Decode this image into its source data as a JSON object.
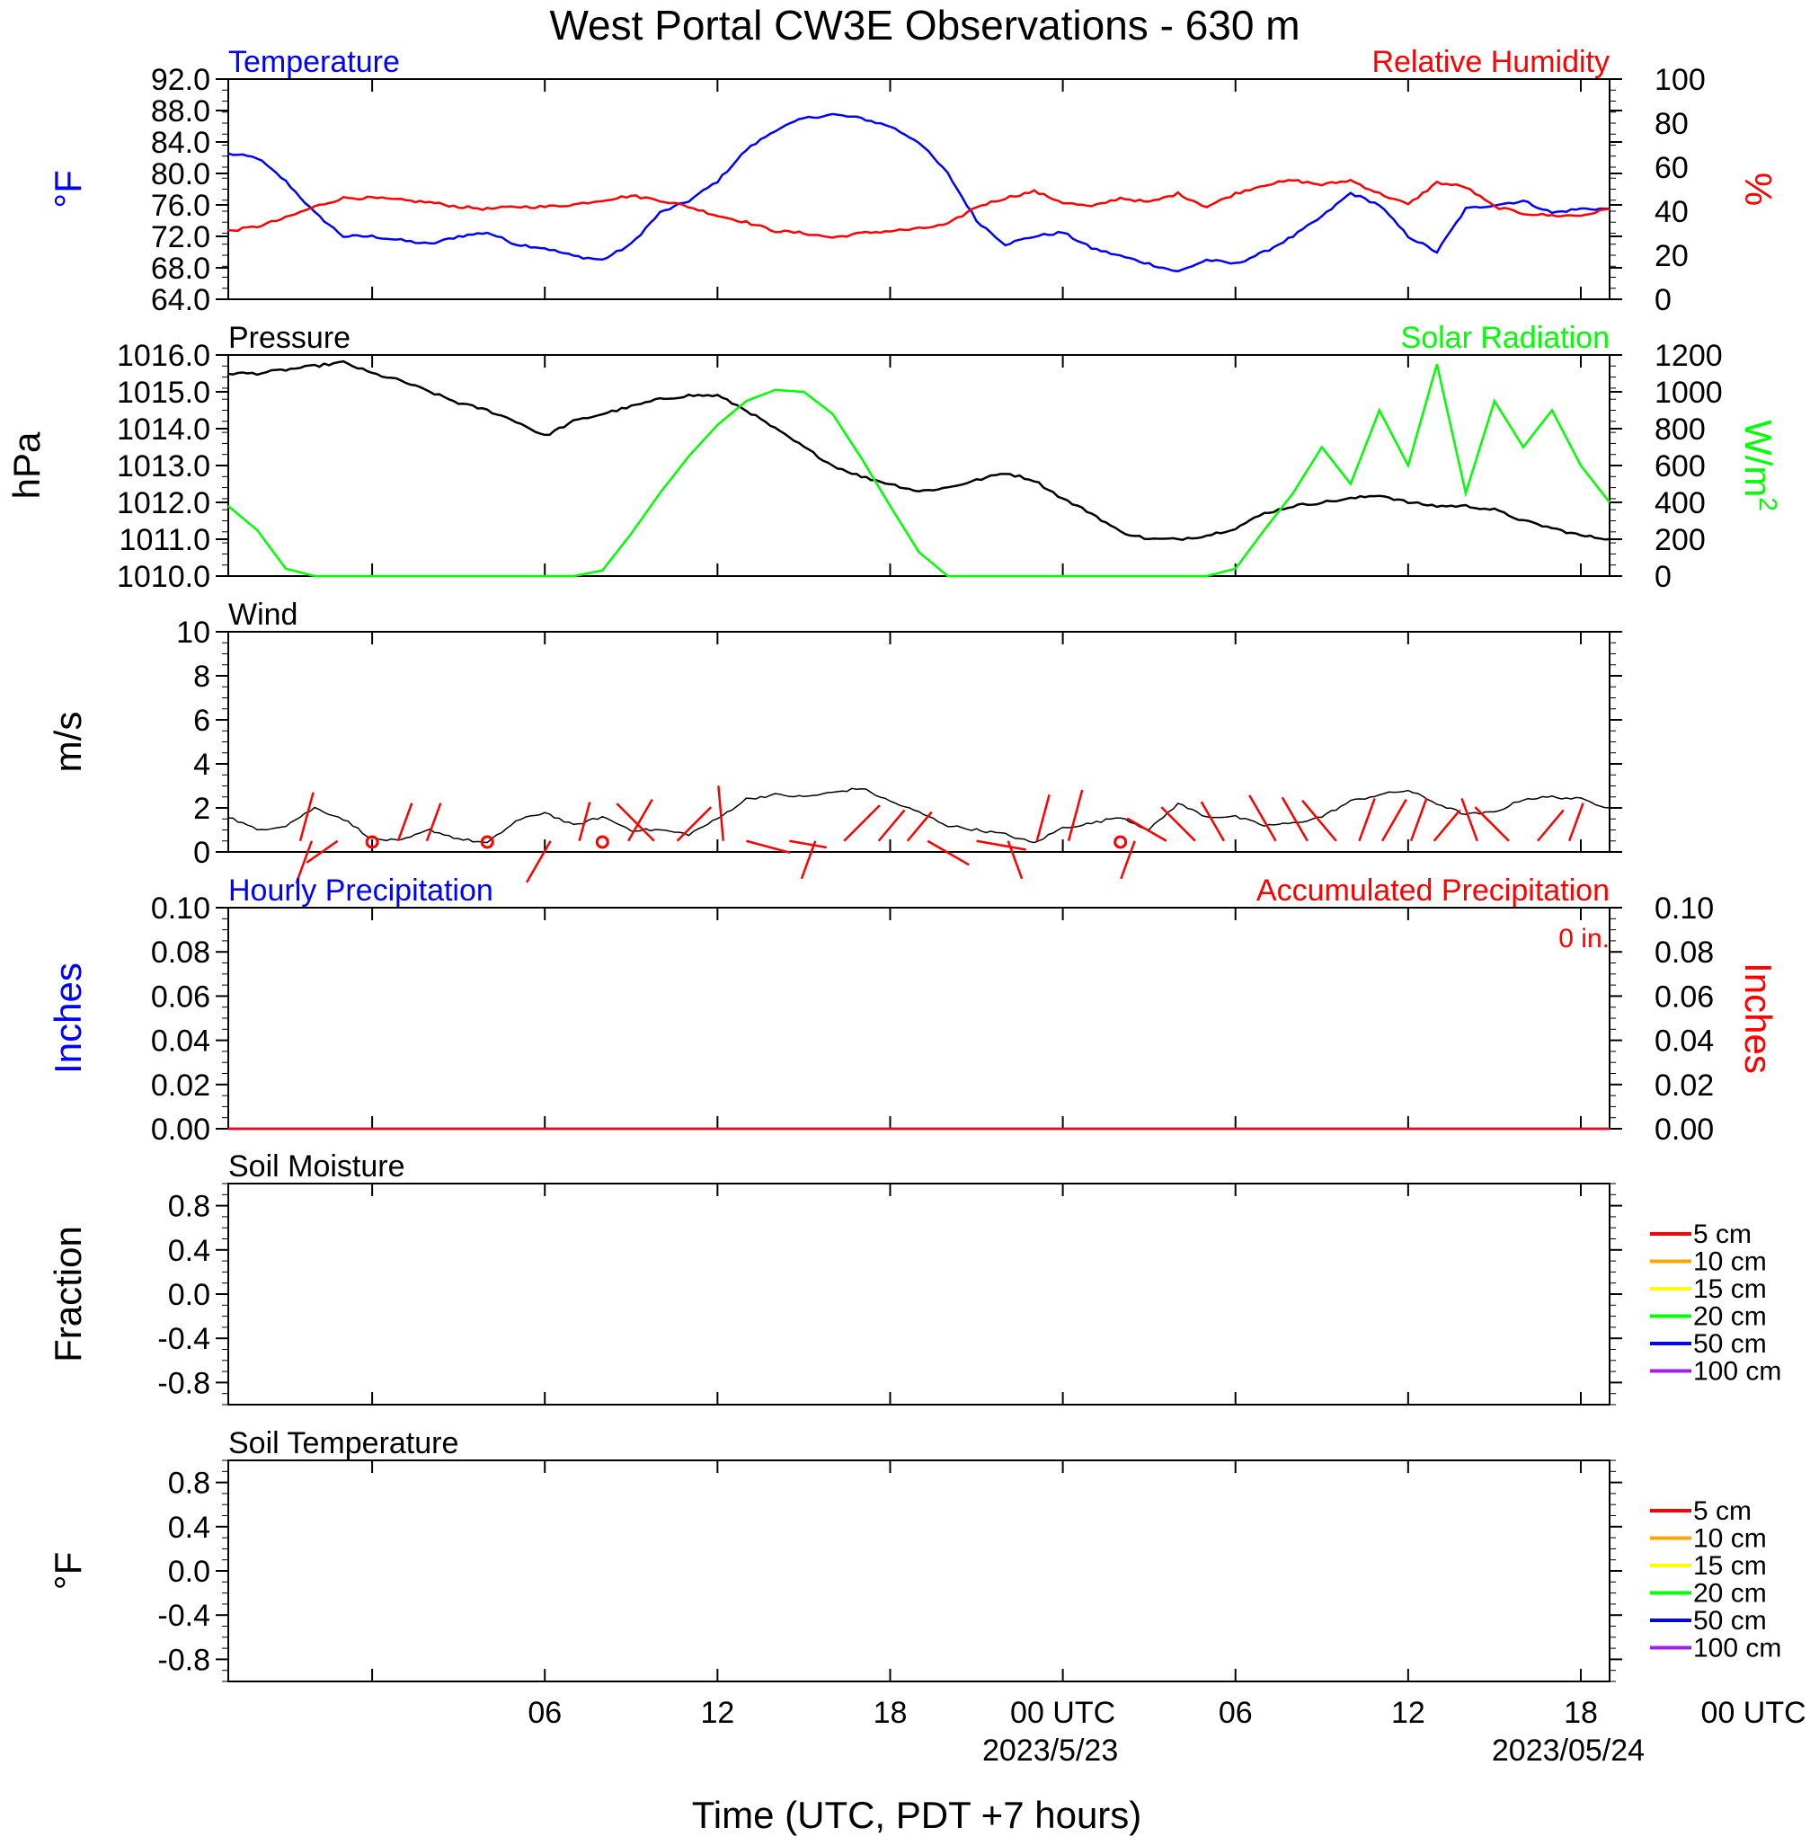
{
  "figure": {
    "title": "West Portal CW3E Observations - 630 m",
    "x_axis_title": "Time (UTC, PDT +7 hours)",
    "x_ticks": [
      "06",
      "12",
      "18",
      "00 UTC",
      "06",
      "12",
      "18",
      "00 UTC"
    ],
    "x_tick_dates": [
      "2023/5/23",
      "2023/05/24"
    ]
  },
  "chart_data": [
    {
      "type": "line",
      "panel": "temperature_rh",
      "left_title": "Temperature",
      "right_title": "Relative Humidity",
      "ylabel": "°F",
      "y2label": "%",
      "ylim": [
        64,
        92
      ],
      "y2lim": [
        0,
        100
      ],
      "yticks": [
        "92.0",
        "88.0",
        "84.0",
        "80.0",
        "76.0",
        "72.0",
        "68.0",
        "64.0"
      ],
      "y2ticks": [
        "100",
        "80",
        "60",
        "40",
        "20",
        "0"
      ],
      "x_hours_range": [
        -5,
        43
      ],
      "series": [
        {
          "name": "Temperature",
          "axis": "left",
          "color": "#0000ff",
          "x": [
            -5,
            -4,
            -3,
            -2,
            -1,
            0,
            1,
            2,
            3,
            4,
            5,
            6,
            7,
            8,
            9,
            10,
            11,
            12,
            13,
            14,
            15,
            16,
            17,
            18,
            19,
            20,
            21,
            22,
            23,
            24,
            25,
            26,
            27,
            28,
            29,
            30,
            31,
            32,
            33,
            34,
            35,
            36,
            37,
            38,
            39,
            40,
            41,
            42,
            43
          ],
          "values": [
            82.5,
            82.0,
            79.0,
            75.0,
            72.0,
            72.0,
            71.5,
            71.0,
            72.0,
            72.5,
            71.0,
            70.5,
            69.5,
            69.0,
            71.0,
            75.0,
            76.5,
            79.0,
            83.0,
            85.5,
            87.0,
            87.5,
            87.0,
            86.0,
            84.0,
            80.0,
            74.0,
            71.0,
            72.0,
            72.5,
            70.5,
            69.5,
            68.5,
            67.5,
            69.0,
            68.5,
            70.0,
            72.0,
            74.5,
            77.5,
            76.0,
            72.0,
            70.0,
            75.5,
            76.0,
            76.5,
            75.0,
            75.5,
            75.5
          ]
        },
        {
          "name": "Relative Humidity",
          "axis": "right",
          "color": "#ff0000",
          "x": [
            -5,
            -4,
            -3,
            -2,
            -1,
            0,
            1,
            2,
            3,
            4,
            5,
            6,
            7,
            8,
            9,
            10,
            11,
            12,
            13,
            14,
            15,
            16,
            17,
            18,
            19,
            20,
            21,
            22,
            23,
            24,
            25,
            26,
            27,
            28,
            29,
            30,
            31,
            32,
            33,
            34,
            35,
            36,
            37,
            38,
            39,
            40,
            41,
            42,
            43
          ],
          "values": [
            31,
            33,
            37,
            42,
            46,
            46,
            45,
            44,
            42,
            41,
            42,
            42,
            43,
            45,
            47,
            45,
            42,
            38,
            35,
            31,
            30,
            28,
            30,
            31,
            32,
            34,
            42,
            46,
            49,
            44,
            42,
            46,
            44,
            48,
            42,
            48,
            52,
            54,
            52,
            54,
            48,
            43,
            53,
            51,
            42,
            39,
            38,
            38,
            41
          ]
        }
      ]
    },
    {
      "type": "line",
      "panel": "pressure_solar",
      "left_title": "Pressure",
      "right_title": "Solar Radiation",
      "ylabel": "hPa",
      "y2label": "W/m2",
      "ylim": [
        1010,
        1016
      ],
      "y2lim": [
        0,
        1200
      ],
      "yticks": [
        "1016.0",
        "1015.0",
        "1014.0",
        "1013.0",
        "1012.0",
        "1011.0",
        "1010.0"
      ],
      "y2ticks": [
        "1200",
        "1000",
        "800",
        "600",
        "400",
        "200",
        "0"
      ],
      "x_hours_range": [
        -5,
        43
      ],
      "series": [
        {
          "name": "Pressure",
          "axis": "left",
          "color": "#000000",
          "x": [
            -5,
            -4,
            -3,
            -2,
            -1,
            0,
            1,
            2,
            3,
            4,
            5,
            6,
            7,
            8,
            9,
            10,
            11,
            12,
            13,
            14,
            15,
            16,
            17,
            18,
            19,
            20,
            21,
            22,
            23,
            24,
            25,
            26,
            27,
            28,
            29,
            30,
            31,
            32,
            33,
            34,
            35,
            36,
            37,
            38,
            39,
            40,
            41,
            42,
            43
          ],
          "values": [
            1015.5,
            1015.5,
            1015.6,
            1015.7,
            1015.8,
            1015.5,
            1015.3,
            1015.0,
            1014.7,
            1014.5,
            1014.2,
            1013.8,
            1014.2,
            1014.4,
            1014.6,
            1014.8,
            1014.9,
            1014.9,
            1014.5,
            1014.0,
            1013.5,
            1013.0,
            1012.7,
            1012.5,
            1012.3,
            1012.4,
            1012.6,
            1012.8,
            1012.6,
            1012.1,
            1011.7,
            1011.2,
            1011.0,
            1011.0,
            1011.1,
            1011.3,
            1011.7,
            1011.9,
            1012.0,
            1012.1,
            1012.2,
            1012.0,
            1011.9,
            1011.9,
            1011.8,
            1011.5,
            1011.3,
            1011.1,
            1011.0
          ]
        },
        {
          "name": "Solar Radiation",
          "axis": "right",
          "color": "#00ff00",
          "x": [
            -5,
            -4,
            -3,
            -2,
            -1,
            0,
            1,
            2,
            3,
            4,
            5,
            6,
            7,
            8,
            9,
            10,
            11,
            12,
            13,
            14,
            15,
            16,
            17,
            18,
            19,
            20,
            21,
            22,
            23,
            24,
            25,
            26,
            27,
            28,
            29,
            30,
            31,
            32,
            33,
            34,
            35,
            36,
            37,
            38,
            39,
            40,
            41,
            42,
            43
          ],
          "values": [
            380,
            250,
            40,
            0,
            0,
            0,
            0,
            0,
            0,
            0,
            0,
            0,
            0,
            30,
            230,
            450,
            650,
            820,
            950,
            1010,
            1000,
            880,
            640,
            380,
            130,
            0,
            0,
            0,
            0,
            0,
            0,
            0,
            0,
            0,
            0,
            40,
            250,
            450,
            700,
            500,
            900,
            600,
            1150,
            450,
            950,
            700,
            900,
            600,
            400
          ]
        }
      ]
    },
    {
      "type": "line",
      "panel": "wind",
      "left_title": "Wind",
      "ylabel": "m/s",
      "ylim": [
        0,
        10
      ],
      "yticks": [
        "10",
        "8",
        "6",
        "4",
        "2",
        "0"
      ],
      "x_hours_range": [
        -5,
        43
      ],
      "series": [
        {
          "name": "Wind",
          "color": "#000000",
          "x": [
            -5,
            -4,
            -3,
            -2,
            -1,
            0,
            1,
            2,
            3,
            4,
            5,
            6,
            7,
            8,
            9,
            10,
            11,
            12,
            13,
            14,
            15,
            16,
            17,
            18,
            19,
            20,
            21,
            22,
            23,
            24,
            25,
            26,
            27,
            28,
            29,
            30,
            31,
            32,
            33,
            34,
            35,
            36,
            37,
            38,
            39,
            40,
            41,
            42,
            43
          ],
          "values": [
            1.6,
            1.0,
            1.2,
            2.0,
            1.5,
            0.6,
            0.5,
            1.0,
            0.6,
            0.4,
            1.4,
            1.8,
            1.2,
            1.6,
            1.0,
            1.0,
            0.8,
            1.5,
            2.4,
            2.6,
            2.5,
            2.7,
            2.9,
            2.3,
            1.8,
            1.2,
            1.0,
            0.8,
            0.4,
            1.1,
            1.3,
            1.6,
            1.0,
            2.2,
            1.6,
            1.6,
            1.2,
            1.3,
            1.6,
            2.3,
            2.6,
            2.8,
            2.2,
            1.7,
            1.8,
            2.4,
            2.5,
            2.4,
            2.0
          ]
        }
      ],
      "wind_barbs": [
        {
          "hour": -2.5,
          "angle": 15,
          "len": 2.0
        },
        {
          "hour": -2.1,
          "angle": 200,
          "len": 1.8
        },
        {
          "hour": -1.2,
          "angle": 235,
          "len": 1.5
        },
        {
          "hour": 0,
          "calm": true
        },
        {
          "hour": 0.9,
          "angle": 20,
          "len": 1.6
        },
        {
          "hour": 1.9,
          "angle": 20,
          "len": 1.6
        },
        {
          "hour": 4.0,
          "calm": true
        },
        {
          "hour": 6.2,
          "angle": 210,
          "len": 1.9
        },
        {
          "hour": 7.2,
          "angle": 15,
          "len": 1.6
        },
        {
          "hour": 8.0,
          "calm": true
        },
        {
          "hour": 8.9,
          "angle": 30,
          "len": 1.9
        },
        {
          "hour": 9.8,
          "angle": 315,
          "len": 2.1
        },
        {
          "hour": 10.6,
          "angle": 45,
          "len": 1.9
        },
        {
          "hour": 12.2,
          "angle": 355,
          "len": 2.2
        },
        {
          "hour": 13.0,
          "angle": 105,
          "len": 1.8
        },
        {
          "hour": 14.5,
          "angle": 100,
          "len": 1.5
        },
        {
          "hour": 15.4,
          "angle": 200,
          "len": 1.6
        },
        {
          "hour": 16.4,
          "angle": 45,
          "len": 2.0
        },
        {
          "hour": 17.6,
          "angle": 40,
          "len": 1.6
        },
        {
          "hour": 18.6,
          "angle": 40,
          "len": 1.5
        },
        {
          "hour": 19.3,
          "angle": 120,
          "len": 1.9
        },
        {
          "hour": 21.0,
          "angle": 100,
          "len": 2.0
        },
        {
          "hour": 22.1,
          "angle": 160,
          "len": 1.6
        },
        {
          "hour": 23.1,
          "angle": 15,
          "len": 1.9
        },
        {
          "hour": 24.2,
          "angle": 15,
          "len": 2.1
        },
        {
          "hour": 26.0,
          "calm": true
        },
        {
          "hour": 26.5,
          "angle": 200,
          "len": 1.6
        },
        {
          "hour": 27.6,
          "angle": 300,
          "len": 1.8
        },
        {
          "hour": 28.6,
          "angle": 315,
          "len": 1.9
        },
        {
          "hour": 29.6,
          "angle": 330,
          "len": 1.8
        },
        {
          "hour": 31.4,
          "angle": 330,
          "len": 2.1
        },
        {
          "hour": 32.5,
          "angle": 330,
          "len": 2.0
        },
        {
          "hour": 33.5,
          "angle": 320,
          "len": 2.1
        },
        {
          "hour": 34.3,
          "angle": 20,
          "len": 1.8
        },
        {
          "hour": 35.1,
          "angle": 30,
          "len": 1.9
        },
        {
          "hour": 36.1,
          "angle": 20,
          "len": 1.8
        },
        {
          "hour": 36.9,
          "angle": 40,
          "len": 1.6
        },
        {
          "hour": 38.4,
          "angle": 340,
          "len": 1.8
        },
        {
          "hour": 39.5,
          "angle": 315,
          "len": 1.9
        },
        {
          "hour": 40.5,
          "angle": 40,
          "len": 1.6
        },
        {
          "hour": 41.6,
          "angle": 20,
          "len": 1.6
        }
      ]
    },
    {
      "type": "line",
      "panel": "precipitation",
      "left_title": "Hourly Precipitation",
      "right_title": "Accumulated Precipitation",
      "annotation": "0 in.",
      "ylabel": "Inches",
      "y2label": "Inches",
      "ylim": [
        0,
        0.1
      ],
      "yticks": [
        "0.10",
        "0.08",
        "0.06",
        "0.04",
        "0.02",
        "0.00"
      ],
      "y2ticks": [
        "0.10",
        "0.08",
        "0.06",
        "0.04",
        "0.02",
        "0.00"
      ],
      "series": [
        {
          "name": "Hourly Precipitation",
          "color": "#0000ff",
          "x": [
            -5,
            43
          ],
          "values": [
            0,
            0
          ]
        },
        {
          "name": "Accumulated Precipitation",
          "color": "#ff0000",
          "x": [
            -5,
            43
          ],
          "values": [
            0,
            0
          ]
        }
      ]
    },
    {
      "type": "line",
      "panel": "soil_moisture",
      "left_title": "Soil Moisture",
      "ylabel": "Fraction",
      "ylim": [
        -1,
        1
      ],
      "yticks": [
        "0.8",
        "0.4",
        "0.0",
        "-0.4",
        "-0.8"
      ],
      "legend": [
        {
          "label": "5 cm",
          "color": "#ff0000"
        },
        {
          "label": "10 cm",
          "color": "#ffa500"
        },
        {
          "label": "15 cm",
          "color": "#ffff00"
        },
        {
          "label": "20 cm",
          "color": "#00ff00"
        },
        {
          "label": "50 cm",
          "color": "#0000ff"
        },
        {
          "label": "100 cm",
          "color": "#a020f0"
        }
      ],
      "series": []
    },
    {
      "type": "line",
      "panel": "soil_temperature",
      "left_title": "Soil Temperature",
      "ylabel": "°F",
      "ylim": [
        -1,
        1
      ],
      "yticks": [
        "0.8",
        "0.4",
        "0.0",
        "-0.4",
        "-0.8"
      ],
      "legend": [
        {
          "label": "5 cm",
          "color": "#ff0000"
        },
        {
          "label": "10 cm",
          "color": "#ffa500"
        },
        {
          "label": "15 cm",
          "color": "#ffff00"
        },
        {
          "label": "20 cm",
          "color": "#00ff00"
        },
        {
          "label": "50 cm",
          "color": "#0000ff"
        },
        {
          "label": "100 cm",
          "color": "#a020f0"
        }
      ],
      "series": []
    }
  ]
}
